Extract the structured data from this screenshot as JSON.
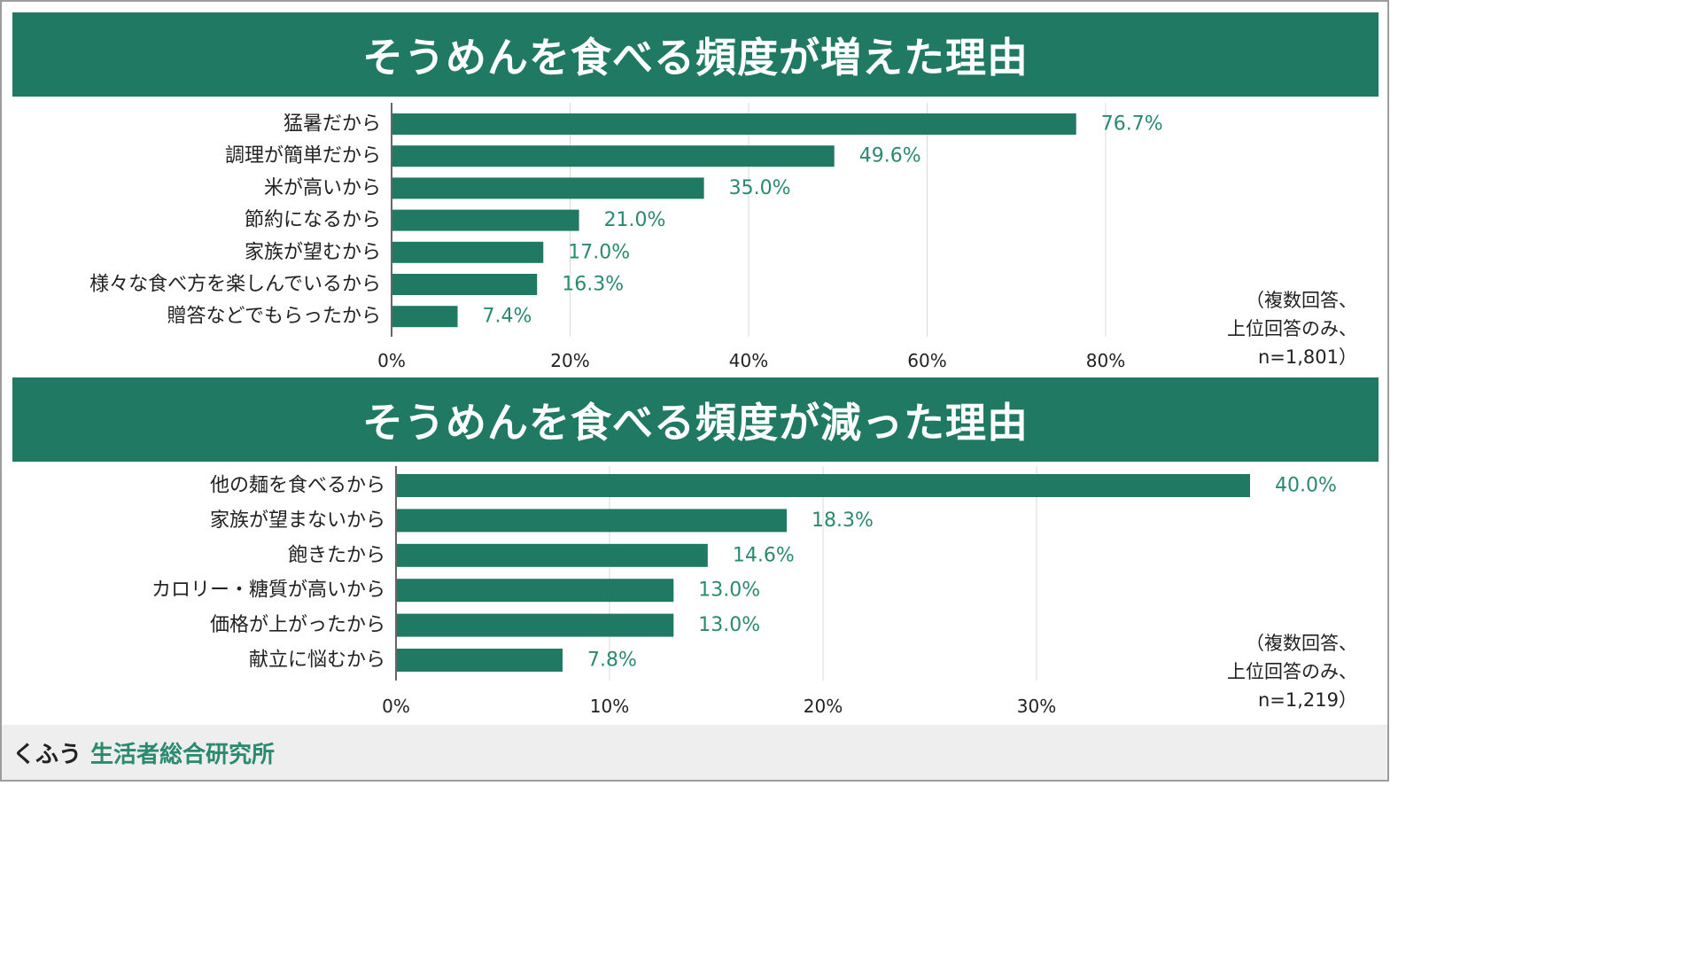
{
  "colors": {
    "bar": "#207a63",
    "value_label": "#2a8a6d",
    "header_bg": "#207a63",
    "grid": "#d9d9d9",
    "text": "#222222"
  },
  "footer": {
    "brand_kana": "くふう",
    "brand_org": "生活者総合研究所"
  },
  "chart_data": [
    {
      "type": "bar",
      "orientation": "horizontal",
      "title": "そうめんを食べる頻度が増えた理由",
      "categories": [
        "猛暑だから",
        "調理が簡単だから",
        "米が高いから",
        "節約になるから",
        "家族が望むから",
        "様々な食べ方を楽しんでいるから",
        "贈答などでもらったから"
      ],
      "values": [
        76.7,
        49.6,
        35.0,
        21.0,
        17.0,
        16.3,
        7.4
      ],
      "value_labels": [
        "76.7%",
        "49.6%",
        "35.0%",
        "21.0%",
        "17.0%",
        "16.3%",
        "7.4%"
      ],
      "xlim": [
        0,
        80
      ],
      "xticks": [
        0,
        20,
        40,
        60,
        80
      ],
      "xtick_labels": [
        "0%",
        "20%",
        "40%",
        "60%",
        "80%"
      ],
      "grid": true,
      "note_lines": [
        "（複数回答、",
        "上位回答のみ、",
        "n=1,801）"
      ]
    },
    {
      "type": "bar",
      "orientation": "horizontal",
      "title": "そうめんを食べる頻度が減った理由",
      "categories": [
        "他の麺を食べるから",
        "家族が望まないから",
        "飽きたから",
        "カロリー・糖質が高いから",
        "価格が上がったから",
        "献立に悩むから"
      ],
      "values": [
        40.0,
        18.3,
        14.6,
        13.0,
        13.0,
        7.8
      ],
      "value_labels": [
        "40.0%",
        "18.3%",
        "14.6%",
        "13.0%",
        "13.0%",
        "7.8%"
      ],
      "xlim": [
        0,
        30
      ],
      "xticks": [
        0,
        10,
        20,
        30
      ],
      "xtick_labels": [
        "0%",
        "10%",
        "20%",
        "30%"
      ],
      "grid": true,
      "note_lines": [
        "（複数回答、",
        "上位回答のみ、",
        "n=1,219）"
      ]
    }
  ]
}
